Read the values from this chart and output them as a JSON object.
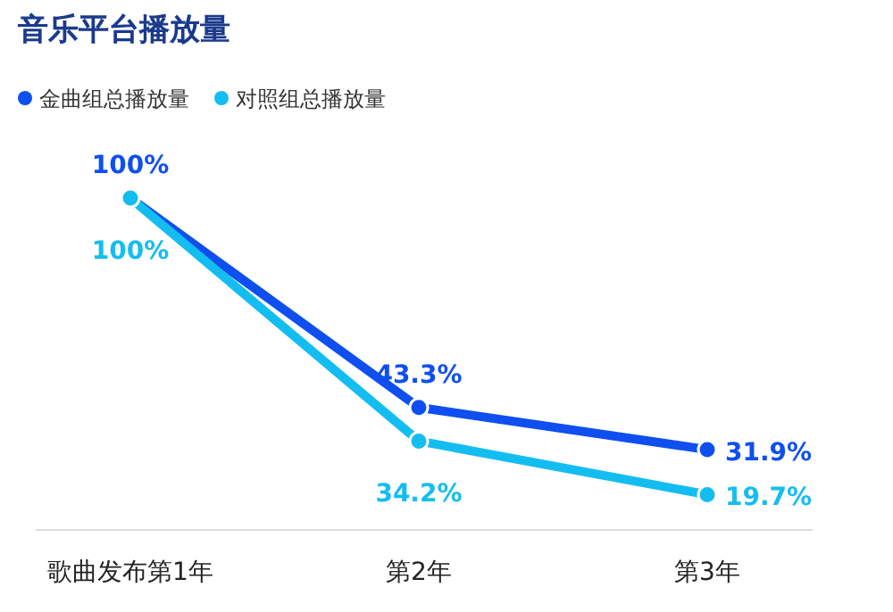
{
  "chart_data": {
    "type": "line",
    "title": "音乐平台播放量",
    "categories": [
      "歌曲发布第1年",
      "第2年",
      "第3年"
    ],
    "series": [
      {
        "name": "金曲组总播放量",
        "color": "#0f4ff0",
        "values": [
          100,
          43.3,
          31.9
        ],
        "value_labels": [
          "100%",
          "43.3%",
          "31.9%"
        ]
      },
      {
        "name": "对照组总播放量",
        "color": "#14bdf0",
        "values": [
          100,
          34.2,
          19.7
        ],
        "value_labels": [
          "100%",
          "34.2%",
          "19.7%"
        ]
      }
    ],
    "legend": "top left",
    "marker": "circle",
    "grid": false
  }
}
